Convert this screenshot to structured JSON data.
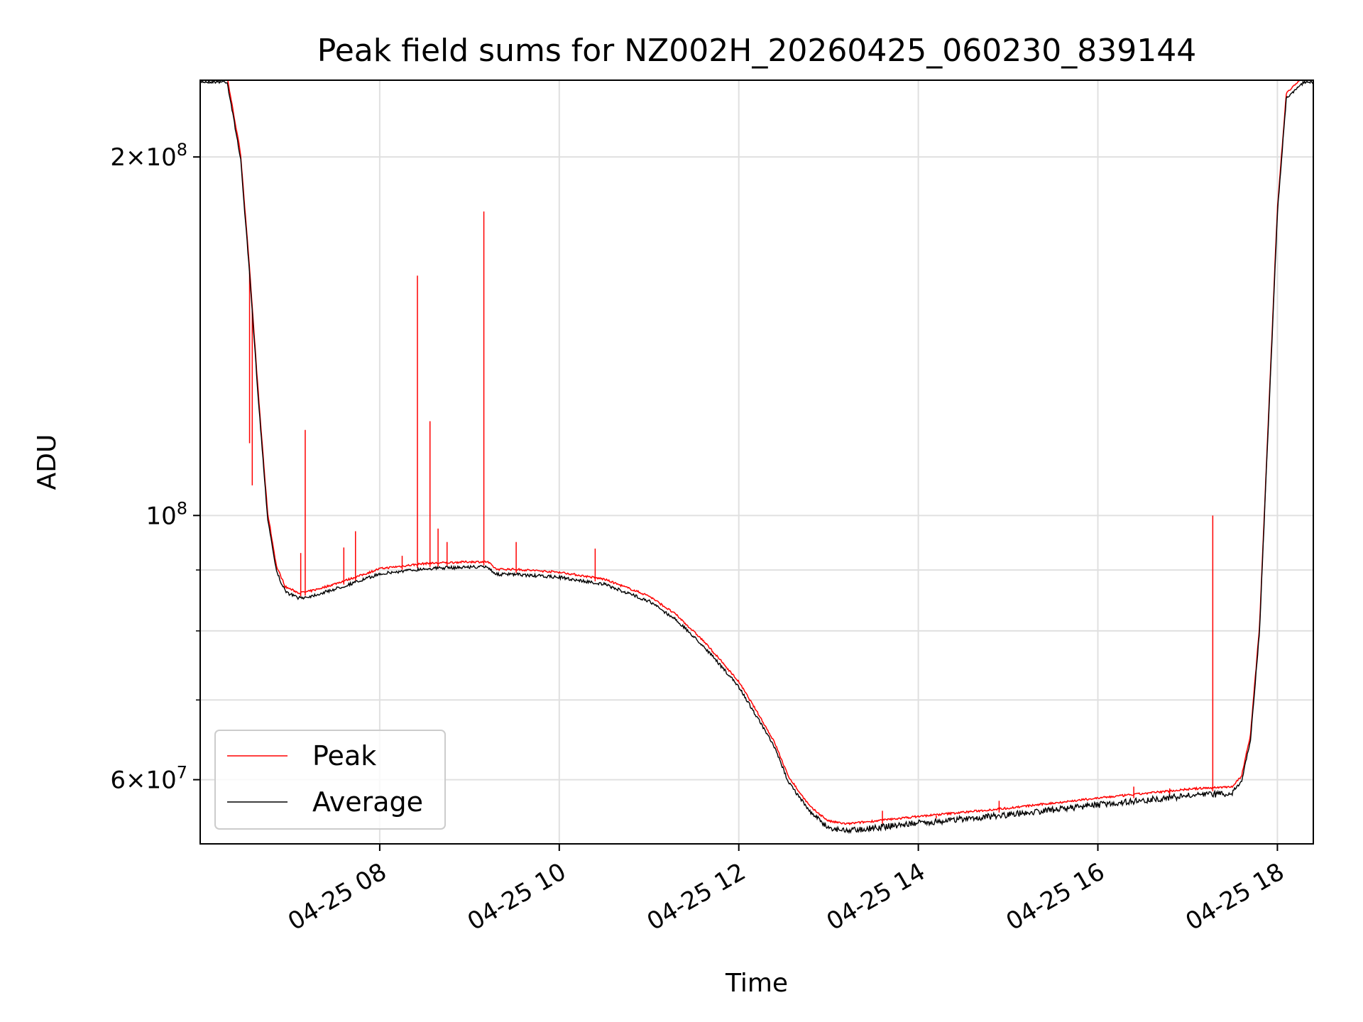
{
  "chart_data": {
    "type": "line",
    "title": "Peak field sums for NZ002H_20260425_060230_839144",
    "xlabel": "Time",
    "ylabel": "ADU",
    "yscale": "log",
    "xlim": [
      6.0,
      18.4
    ],
    "ylim": [
      53000000,
      232000000
    ],
    "x_unit": "hours since 04-25 00:00",
    "x_ticks": [
      {
        "value": 8,
        "label": "04-25 08"
      },
      {
        "value": 10,
        "label": "04-25 10"
      },
      {
        "value": 12,
        "label": "04-25 12"
      },
      {
        "value": 14,
        "label": "04-25 14"
      },
      {
        "value": 16,
        "label": "04-25 16"
      },
      {
        "value": 18,
        "label": "04-25 18"
      }
    ],
    "y_ticks_major": [
      {
        "value": 60000000,
        "base": "6",
        "exp": "7"
      },
      {
        "value": 100000000,
        "base": "",
        "exp": "8"
      },
      {
        "value": 200000000,
        "base": "2",
        "exp": "8"
      }
    ],
    "y_ticks_minor": [
      70000000,
      80000000,
      90000000
    ],
    "grid": true,
    "legend": {
      "location": "lower-left",
      "entries": [
        "Peak",
        "Average"
      ]
    },
    "series": [
      {
        "name": "Average",
        "color": "#000000",
        "x": [
          6.0,
          6.3,
          6.45,
          6.55,
          6.65,
          6.75,
          6.85,
          6.95,
          7.1,
          7.2,
          7.35,
          7.5,
          7.8,
          8.0,
          8.5,
          9.0,
          9.2,
          9.3,
          9.5,
          10.0,
          10.5,
          11.0,
          11.3,
          11.6,
          11.8,
          12.0,
          12.2,
          12.3,
          12.4,
          12.55,
          12.62,
          12.65,
          12.8,
          13.0,
          13.2,
          13.5,
          14.0,
          15.0,
          16.0,
          17.0,
          17.5,
          17.6,
          17.7,
          17.8,
          17.9,
          18.0,
          18.1,
          18.3,
          18.4
        ],
        "y": [
          232000000,
          232000000,
          200000000,
          160000000,
          125000000,
          100000000,
          90000000,
          86500000,
          85500000,
          85700000,
          86300000,
          87000000,
          88500000,
          89600000,
          90500000,
          90800000,
          90800000,
          89500000,
          89500000,
          89000000,
          87800000,
          85000000,
          82000000,
          78000000,
          75000000,
          72000000,
          68000000,
          66000000,
          64000000,
          60000000,
          59000000,
          58500000,
          56500000,
          55000000,
          54700000,
          55000000,
          55500000,
          56400000,
          57500000,
          58500000,
          58800000,
          60000000,
          65000000,
          80000000,
          120000000,
          180000000,
          225000000,
          232000000,
          232000000
        ]
      },
      {
        "name": "Peak",
        "color": "#ff0000",
        "offset_ratio": 1.005,
        "spikes": [
          {
            "x": 6.55,
            "y": 115000000
          },
          {
            "x": 6.58,
            "y": 106000000
          },
          {
            "x": 7.12,
            "y": 93000000
          },
          {
            "x": 7.17,
            "y": 118000000
          },
          {
            "x": 7.6,
            "y": 94000000
          },
          {
            "x": 7.73,
            "y": 97000000
          },
          {
            "x": 8.25,
            "y": 92500000
          },
          {
            "x": 8.42,
            "y": 159000000
          },
          {
            "x": 8.56,
            "y": 120000000
          },
          {
            "x": 8.65,
            "y": 97500000
          },
          {
            "x": 8.75,
            "y": 95000000
          },
          {
            "x": 9.16,
            "y": 180000000
          },
          {
            "x": 9.52,
            "y": 95000000
          },
          {
            "x": 10.4,
            "y": 93800000
          },
          {
            "x": 13.6,
            "y": 56500000
          },
          {
            "x": 14.2,
            "y": 56000000
          },
          {
            "x": 14.9,
            "y": 57600000
          },
          {
            "x": 16.4,
            "y": 59200000
          },
          {
            "x": 16.8,
            "y": 59000000
          },
          {
            "x": 17.28,
            "y": 100000000
          }
        ]
      }
    ]
  }
}
